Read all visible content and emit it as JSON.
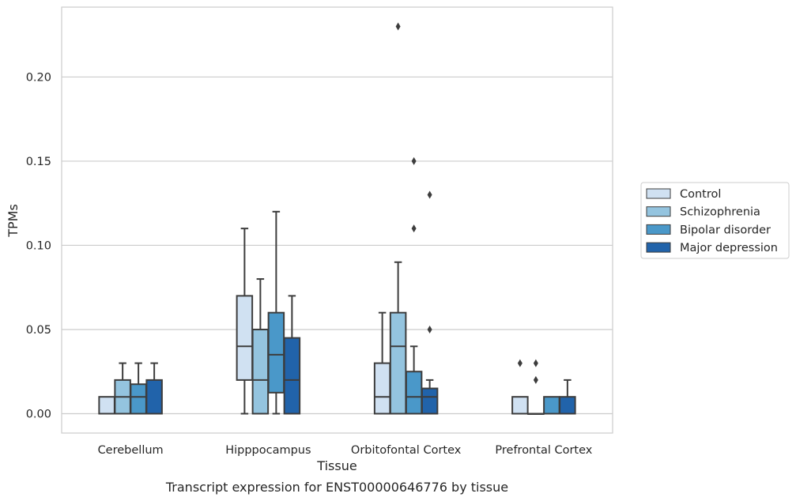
{
  "chart_data": {
    "type": "boxplot",
    "title": "",
    "caption": "Transcript expression for ENST00000646776 by tissue",
    "xlabel": "Tissue",
    "ylabel": "TPMs",
    "ylim": [
      -0.0115,
      0.2415
    ],
    "yticks": [
      "0.00",
      "0.05",
      "0.10",
      "0.15",
      "0.20"
    ],
    "ytick_values": [
      0,
      0.05,
      0.1,
      0.15,
      0.2
    ],
    "grid": "horizontal",
    "legend_position": "right",
    "categories": [
      "Cerebellum",
      "Hipppocampus",
      "Orbitofontal Cortex",
      "Prefrontal Cortex"
    ],
    "series": [
      {
        "name": "Control",
        "color": "#d0e1f2",
        "boxes": [
          {
            "whisker_low": 0,
            "q1": 0,
            "median": 0,
            "q3": 0.01,
            "whisker_high": 0.01,
            "outliers": []
          },
          {
            "whisker_low": 0,
            "q1": 0.02,
            "median": 0.04,
            "q3": 0.07,
            "whisker_high": 0.11,
            "outliers": []
          },
          {
            "whisker_low": 0,
            "q1": 0,
            "median": 0.01,
            "q3": 0.03,
            "whisker_high": 0.06,
            "outliers": []
          },
          {
            "whisker_low": 0,
            "q1": 0,
            "median": 0,
            "q3": 0.01,
            "whisker_high": 0.01,
            "outliers": [
              0.03
            ]
          }
        ]
      },
      {
        "name": "Schizophrenia",
        "color": "#94c4df",
        "boxes": [
          {
            "whisker_low": 0,
            "q1": 0,
            "median": 0.01,
            "q3": 0.02,
            "whisker_high": 0.03,
            "outliers": []
          },
          {
            "whisker_low": 0,
            "q1": 0,
            "median": 0.02,
            "q3": 0.05,
            "whisker_high": 0.08,
            "outliers": []
          },
          {
            "whisker_low": 0,
            "q1": 0,
            "median": 0.04,
            "q3": 0.06,
            "whisker_high": 0.09,
            "outliers": [
              0.23
            ]
          },
          {
            "whisker_low": 0,
            "q1": 0,
            "median": 0,
            "q3": 0,
            "whisker_high": 0,
            "outliers": [
              0.02,
              0.03
            ]
          }
        ]
      },
      {
        "name": "Bipolar disorder",
        "color": "#4a98c9",
        "boxes": [
          {
            "whisker_low": 0,
            "q1": 0,
            "median": 0.01,
            "q3": 0.0175,
            "whisker_high": 0.03,
            "outliers": []
          },
          {
            "whisker_low": 0,
            "q1": 0.0125,
            "median": 0.035,
            "q3": 0.06,
            "whisker_high": 0.12,
            "outliers": []
          },
          {
            "whisker_low": 0,
            "q1": 0,
            "median": 0.01,
            "q3": 0.025,
            "whisker_high": 0.04,
            "outliers": [
              0.11,
              0.15
            ]
          },
          {
            "whisker_low": 0,
            "q1": 0,
            "median": 0,
            "q3": 0.01,
            "whisker_high": 0.01,
            "outliers": []
          }
        ]
      },
      {
        "name": "Major depression",
        "color": "#2163aa",
        "boxes": [
          {
            "whisker_low": 0,
            "q1": 0,
            "median": 0,
            "q3": 0.02,
            "whisker_high": 0.03,
            "outliers": []
          },
          {
            "whisker_low": 0,
            "q1": 0,
            "median": 0.02,
            "q3": 0.045,
            "whisker_high": 0.07,
            "outliers": []
          },
          {
            "whisker_low": 0,
            "q1": 0,
            "median": 0.01,
            "q3": 0.015,
            "whisker_high": 0.02,
            "outliers": [
              0.05,
              0.13
            ]
          },
          {
            "whisker_low": 0,
            "q1": 0,
            "median": 0,
            "q3": 0.01,
            "whisker_high": 0.02,
            "outliers": []
          }
        ]
      }
    ]
  }
}
